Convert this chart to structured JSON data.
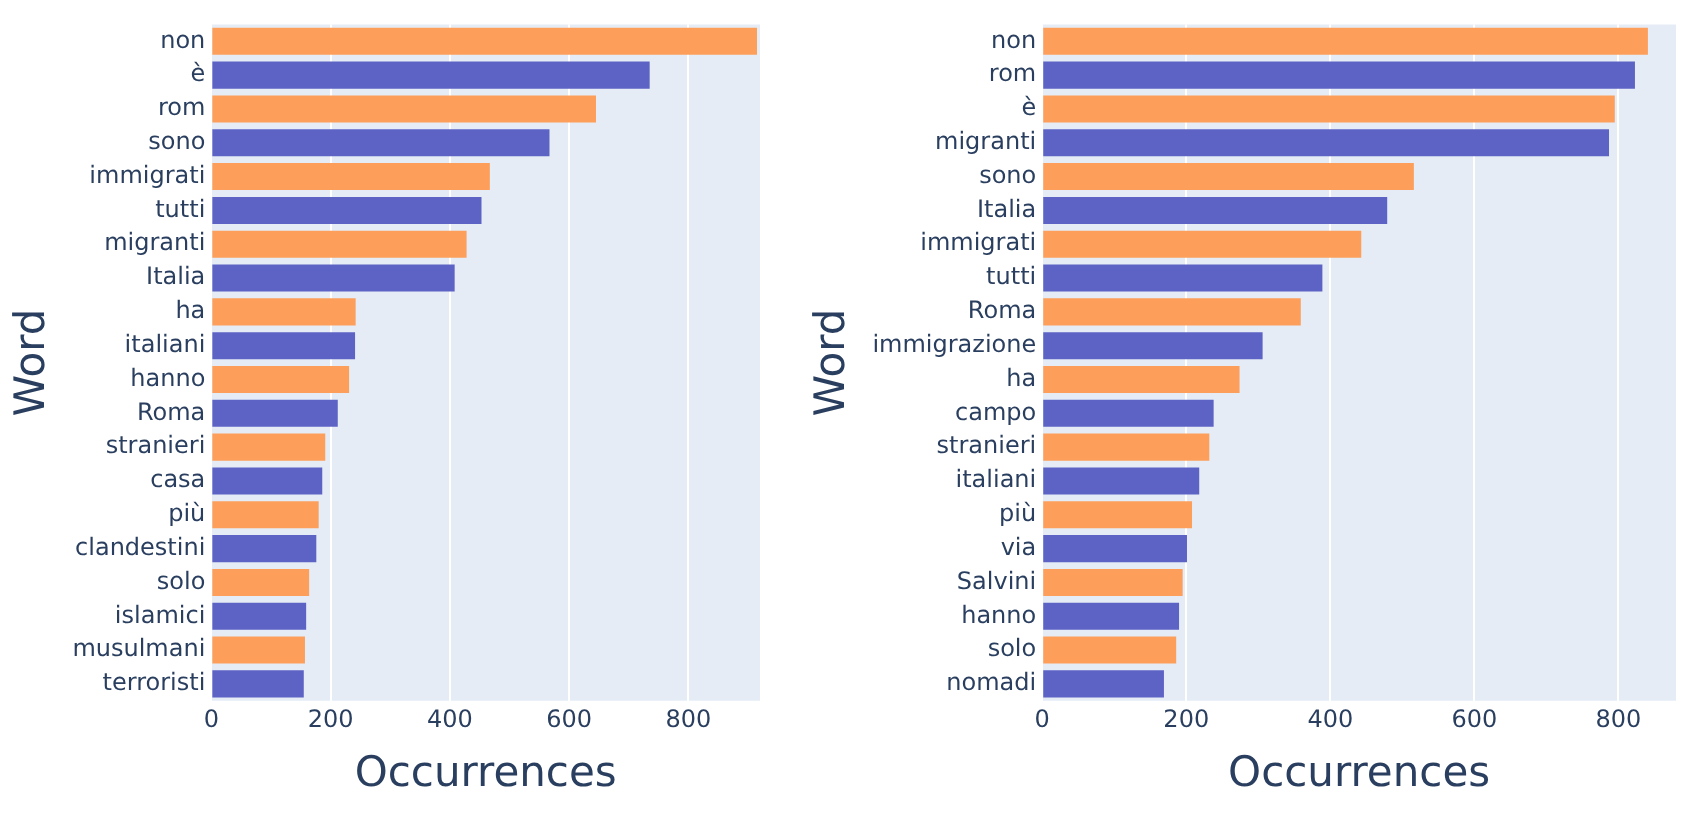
{
  "chart_data": [
    {
      "type": "bar",
      "orientation": "horizontal",
      "xlabel": "Occurrences",
      "ylabel": "Word",
      "categories": [
        "non",
        "è",
        "rom",
        "sono",
        "immigrati",
        "tutti",
        "migranti",
        "Italia",
        "ha",
        "italiani",
        "hanno",
        "Roma",
        "stranieri",
        "casa",
        "più",
        "clandestini",
        "solo",
        "islamici",
        "musulmani",
        "terroristi"
      ],
      "values": [
        915,
        735,
        645,
        567,
        467,
        453,
        428,
        408,
        242,
        241,
        231,
        212,
        191,
        186,
        180,
        176,
        164,
        159,
        157,
        155
      ],
      "colors": [
        "#fd9f5b",
        "#5c63c4",
        "#fd9f5b",
        "#5c63c4",
        "#fd9f5b",
        "#5c63c4",
        "#fd9f5b",
        "#5c63c4",
        "#fd9f5b",
        "#5c63c4",
        "#fd9f5b",
        "#5c63c4",
        "#fd9f5b",
        "#5c63c4",
        "#fd9f5b",
        "#5c63c4",
        "#fd9f5b",
        "#5c63c4",
        "#fd9f5b",
        "#5c63c4"
      ],
      "xlim": [
        0,
        920
      ],
      "xticks": [
        0,
        200,
        400,
        600,
        800
      ],
      "grid": "x"
    },
    {
      "type": "bar",
      "orientation": "horizontal",
      "xlabel": "Occurrences",
      "ylabel": "Word",
      "categories": [
        "non",
        "rom",
        "è",
        "migranti",
        "sono",
        "Italia",
        "immigrati",
        "tutti",
        "Roma",
        "immigrazione",
        "ha",
        "campo",
        "stranieri",
        "italiani",
        "più",
        "via",
        "Salvini",
        "hanno",
        "solo",
        "nomadi"
      ],
      "values": [
        841,
        823,
        795,
        787,
        516,
        479,
        443,
        389,
        359,
        306,
        274,
        238,
        232,
        218,
        208,
        201,
        195,
        190,
        186,
        169
      ],
      "colors": [
        "#fd9f5b",
        "#5c63c4",
        "#fd9f5b",
        "#5c63c4",
        "#fd9f5b",
        "#5c63c4",
        "#fd9f5b",
        "#5c63c4",
        "#fd9f5b",
        "#5c63c4",
        "#fd9f5b",
        "#5c63c4",
        "#fd9f5b",
        "#5c63c4",
        "#fd9f5b",
        "#5c63c4",
        "#fd9f5b",
        "#5c63c4",
        "#fd9f5b",
        "#5c63c4"
      ],
      "xlim": [
        0,
        880
      ],
      "xticks": [
        0,
        200,
        400,
        600,
        800
      ],
      "grid": "x"
    }
  ]
}
